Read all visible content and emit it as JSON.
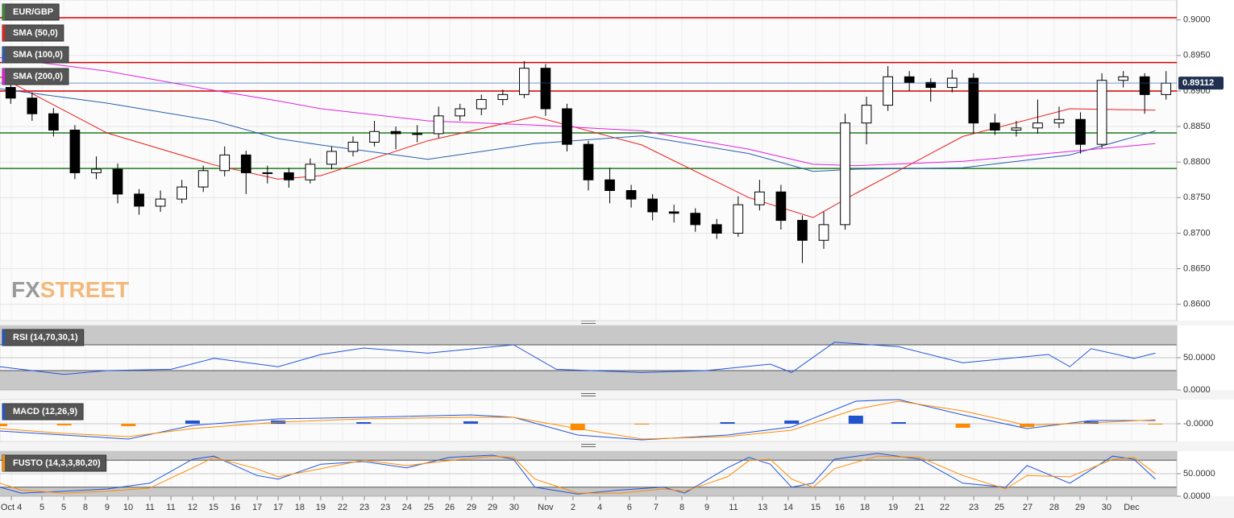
{
  "chart_data": [
    {
      "type": "candlestick",
      "title": "EUR/GBP",
      "title_color": "#3a8a3a",
      "open": [
        0.8905,
        0.889,
        0.8868,
        0.8845,
        0.8785,
        0.879,
        0.8755,
        0.8738,
        0.8748,
        0.8765,
        0.8788,
        0.881,
        0.8785,
        0.8785,
        0.8775,
        0.8797,
        0.8815,
        0.8828,
        0.8843,
        0.884,
        0.884,
        0.8865,
        0.8875,
        0.8888,
        0.8895,
        0.8932,
        0.8875,
        0.8825,
        0.8775,
        0.876,
        0.8748,
        0.873,
        0.8728,
        0.8712,
        0.87,
        0.874,
        0.8758,
        0.8718,
        0.869,
        0.8712,
        0.8855,
        0.888,
        0.892,
        0.8912,
        0.8905,
        0.8918,
        0.8855,
        0.8845,
        0.8848,
        0.8855,
        0.886,
        0.8825,
        0.8915,
        0.892,
        0.8895
      ],
      "high": [
        0.8915,
        0.8898,
        0.8876,
        0.8852,
        0.8808,
        0.8798,
        0.8762,
        0.876,
        0.8775,
        0.8795,
        0.8822,
        0.8816,
        0.8795,
        0.8792,
        0.8805,
        0.8822,
        0.8836,
        0.8858,
        0.885,
        0.8852,
        0.8878,
        0.8882,
        0.8895,
        0.8902,
        0.8942,
        0.8938,
        0.8882,
        0.883,
        0.8792,
        0.8768,
        0.8755,
        0.874,
        0.8735,
        0.872,
        0.8752,
        0.8775,
        0.8768,
        0.8725,
        0.873,
        0.8868,
        0.8892,
        0.8935,
        0.8928,
        0.8918,
        0.893,
        0.8925,
        0.8868,
        0.8858,
        0.8888,
        0.8878,
        0.887,
        0.8925,
        0.8928,
        0.8925,
        0.8928
      ],
      "low": [
        0.8882,
        0.8858,
        0.8836,
        0.8776,
        0.8776,
        0.8742,
        0.8726,
        0.873,
        0.8742,
        0.8758,
        0.878,
        0.8755,
        0.877,
        0.8764,
        0.877,
        0.879,
        0.8808,
        0.8822,
        0.8818,
        0.8828,
        0.8834,
        0.8858,
        0.8866,
        0.888,
        0.889,
        0.8865,
        0.8815,
        0.876,
        0.8742,
        0.8736,
        0.8718,
        0.8715,
        0.8702,
        0.8692,
        0.8695,
        0.8732,
        0.8705,
        0.8658,
        0.8678,
        0.8705,
        0.8825,
        0.8872,
        0.89,
        0.8885,
        0.8898,
        0.884,
        0.8838,
        0.8836,
        0.884,
        0.8848,
        0.8812,
        0.882,
        0.8905,
        0.8868,
        0.8888
      ],
      "close": [
        0.889,
        0.8868,
        0.8845,
        0.8785,
        0.879,
        0.8755,
        0.8738,
        0.8748,
        0.8765,
        0.8788,
        0.881,
        0.8785,
        0.8785,
        0.8775,
        0.8797,
        0.8815,
        0.8828,
        0.8843,
        0.884,
        0.884,
        0.8865,
        0.8875,
        0.8888,
        0.8895,
        0.8932,
        0.8875,
        0.8825,
        0.8775,
        0.876,
        0.8748,
        0.873,
        0.8728,
        0.8712,
        0.87,
        0.874,
        0.8758,
        0.8718,
        0.869,
        0.8712,
        0.8855,
        0.888,
        0.892,
        0.8912,
        0.8905,
        0.8918,
        0.8855,
        0.8845,
        0.8848,
        0.8855,
        0.886,
        0.8825,
        0.8915,
        0.892,
        0.8895,
        0.8911
      ],
      "up_color": "#ffffff",
      "down_color": "#000000",
      "series": [
        {
          "name": "SMA (50,0)",
          "color": "#e8201c",
          "x": [
            0,
            5,
            10,
            13,
            15,
            20,
            25,
            30,
            35,
            38,
            40,
            45,
            50,
            54
          ],
          "values": [
            0.892,
            0.8841,
            0.8796,
            0.8776,
            0.8781,
            0.883,
            0.8864,
            0.8824,
            0.875,
            0.8722,
            0.8756,
            0.8836,
            0.8875,
            0.8873
          ]
        },
        {
          "name": "SMA (100,0)",
          "color": "#2a5db0",
          "x": [
            0,
            5,
            10,
            13,
            15,
            20,
            25,
            30,
            35,
            38,
            40,
            45,
            50,
            54
          ],
          "values": [
            0.8903,
            0.8883,
            0.8858,
            0.8833,
            0.8824,
            0.8804,
            0.8826,
            0.8837,
            0.8812,
            0.8787,
            0.879,
            0.8792,
            0.881,
            0.8844
          ]
        },
        {
          "name": "SMA (200,0)",
          "color": "#e020e0",
          "x": [
            0,
            5,
            10,
            13,
            15,
            20,
            25,
            30,
            35,
            38,
            40,
            45,
            50,
            54
          ],
          "values": [
            0.8947,
            0.8928,
            0.8901,
            0.8886,
            0.8875,
            0.8858,
            0.8852,
            0.8844,
            0.8818,
            0.8797,
            0.8795,
            0.8801,
            0.8815,
            0.8826
          ]
        }
      ],
      "levels": [
        {
          "value": 0.9003,
          "color": "#d40000"
        },
        {
          "value": 0.894,
          "color": "#d40000"
        },
        {
          "value": 0.89,
          "color": "#d40000"
        },
        {
          "value": 0.8841,
          "color": "#1f7a1f"
        },
        {
          "value": 0.8791,
          "color": "#1f7a1f"
        }
      ],
      "last_price": 0.89112,
      "last_price_color": "#1f3050",
      "logo": [
        "FX",
        "STREET"
      ],
      "xlim": [
        0,
        55
      ],
      "xticks": [
        {
          "value": 0.53,
          "label": "Oct 4"
        },
        {
          "value": 1.96,
          "label": "5"
        },
        {
          "value": 2.98,
          "label": "5"
        },
        {
          "value": 3.99,
          "label": "8"
        },
        {
          "value": 5.01,
          "label": "9"
        },
        {
          "value": 5.99,
          "label": "10"
        },
        {
          "value": 7.01,
          "label": "11"
        },
        {
          "value": 7.99,
          "label": "11"
        },
        {
          "value": 9.0,
          "label": "12"
        },
        {
          "value": 9.98,
          "label": "15"
        },
        {
          "value": 11.0,
          "label": "16"
        },
        {
          "value": 12.02,
          "label": "17"
        },
        {
          "value": 13.0,
          "label": "17"
        },
        {
          "value": 14.01,
          "label": "18"
        },
        {
          "value": 14.99,
          "label": "19"
        },
        {
          "value": 16.01,
          "label": "22"
        },
        {
          "value": 17.03,
          "label": "23"
        },
        {
          "value": 18.01,
          "label": "23"
        },
        {
          "value": 19.02,
          "label": "24"
        },
        {
          "value": 20.04,
          "label": "25"
        },
        {
          "value": 21.02,
          "label": "26"
        },
        {
          "value": 22.04,
          "label": "29"
        },
        {
          "value": 23.02,
          "label": "29"
        },
        {
          "value": 24.03,
          "label": "30"
        },
        {
          "value": 25.5,
          "label": "Nov"
        },
        {
          "value": 26.78,
          "label": "2"
        },
        {
          "value": 28.03,
          "label": "4"
        },
        {
          "value": 29.42,
          "label": "6"
        },
        {
          "value": 30.66,
          "label": "7"
        },
        {
          "value": 31.87,
          "label": "8"
        },
        {
          "value": 33.04,
          "label": "9"
        },
        {
          "value": 34.28,
          "label": "11"
        },
        {
          "value": 35.64,
          "label": "13"
        },
        {
          "value": 36.84,
          "label": "14"
        },
        {
          "value": 38.12,
          "label": "15"
        },
        {
          "value": 39.25,
          "label": "16"
        },
        {
          "value": 40.42,
          "label": "18"
        },
        {
          "value": 41.74,
          "label": "19"
        },
        {
          "value": 42.98,
          "label": "21"
        },
        {
          "value": 44.15,
          "label": "22"
        },
        {
          "value": 45.51,
          "label": "23"
        },
        {
          "value": 46.71,
          "label": "25"
        },
        {
          "value": 48.03,
          "label": "27"
        },
        {
          "value": 49.27,
          "label": "28"
        },
        {
          "value": 50.48,
          "label": "29"
        },
        {
          "value": 51.72,
          "label": "30"
        },
        {
          "value": 52.89,
          "label": "Dec"
        }
      ],
      "ylim": [
        0.8577,
        0.9028
      ],
      "yticks": [
        {
          "value": 0.86,
          "label": "0.8600"
        },
        {
          "value": 0.865,
          "label": "0.8650"
        },
        {
          "value": 0.87,
          "label": "0.8700"
        },
        {
          "value": 0.875,
          "label": "0.8750"
        },
        {
          "value": 0.88,
          "label": "0.8800"
        },
        {
          "value": 0.885,
          "label": "0.8850"
        },
        {
          "value": 0.89,
          "label": "0.8900"
        },
        {
          "value": 0.895,
          "label": "0.8950"
        },
        {
          "value": 0.9,
          "label": "0.9000"
        }
      ],
      "grid": true
    },
    {
      "type": "line",
      "title": "RSI (14,70,30,1)",
      "title_color": "#2255cc",
      "bands": [
        70,
        30
      ],
      "ylim": [
        0,
        100
      ],
      "yticks": [
        {
          "value": 50,
          "label": "50.0000"
        },
        {
          "value": 0,
          "label": "0.0000"
        }
      ],
      "series": [
        {
          "color": "#2255dd",
          "x": [
            0,
            3,
            5,
            8,
            10,
            13,
            15,
            17,
            20,
            24,
            26,
            30,
            33,
            36,
            37,
            39,
            42,
            45,
            49,
            50,
            51,
            53,
            54
          ],
          "values": [
            36,
            24,
            30,
            32,
            49,
            36,
            55,
            65,
            57,
            70,
            32,
            27,
            30,
            40,
            27,
            74,
            67,
            42,
            55,
            36,
            64,
            49,
            57
          ]
        }
      ]
    },
    {
      "type": "line",
      "title": "MACD (12,26,9)",
      "title_color": "#2255cc",
      "ylim": [
        -0.0022,
        0.003
      ],
      "yticks": [
        {
          "value": 0,
          "label": "-0.0000"
        }
      ],
      "histogram": {
        "x": [
          0,
          3,
          6,
          9,
          13,
          17,
          22,
          24,
          27,
          30,
          34,
          37,
          40,
          42,
          45,
          48,
          51,
          54
        ],
        "values": [
          -0.0003,
          -0.0002,
          -0.0003,
          0.0004,
          0.0004,
          0.0002,
          0.0003,
          0,
          -0.0008,
          -0.0001,
          0.0002,
          0.0004,
          0.001,
          0.0002,
          -0.0005,
          -0.0004,
          0.0003,
          -0.0001
        ],
        "up_color": "#2255cc",
        "down_color": "#ff8c00"
      },
      "series": [
        {
          "color": "#2255dd",
          "x": [
            0,
            3,
            6,
            9,
            13,
            17,
            22,
            24,
            27,
            30,
            34,
            37,
            40,
            42,
            45,
            48,
            51,
            54
          ],
          "values": [
            -0.0009,
            -0.0014,
            -0.0019,
            -0.0002,
            0.0006,
            0.0008,
            0.0011,
            0.0008,
            -0.0014,
            -0.002,
            -0.0014,
            -0.0004,
            0.0028,
            0.003,
            0.0011,
            -0.0006,
            0.0004,
            0.0004
          ]
        },
        {
          "color": "#ff8c00",
          "x": [
            0,
            3,
            6,
            9,
            13,
            17,
            22,
            24,
            27,
            30,
            34,
            37,
            40,
            42,
            45,
            48,
            51,
            54
          ],
          "values": [
            -0.0006,
            -0.0012,
            -0.0016,
            -0.0006,
            0.0002,
            0.0006,
            0.0008,
            0.0008,
            -0.0006,
            -0.0019,
            -0.0016,
            -0.0008,
            0.0018,
            0.0028,
            0.0016,
            -0.0002,
            0.0001,
            0.0005
          ]
        }
      ]
    },
    {
      "type": "line",
      "title": "FUSTO (14,3,3,80,20)",
      "title_color": "#ff8c00",
      "bands": [
        80,
        20
      ],
      "ylim": [
        0,
        100
      ],
      "yticks": [
        {
          "value": 50,
          "label": "50.0000"
        },
        {
          "value": 0,
          "label": "0.0000"
        }
      ],
      "series": [
        {
          "color": "#2255dd",
          "x": [
            0,
            1,
            3,
            5,
            7,
            9,
            10,
            12,
            13,
            15,
            17,
            19,
            21,
            23,
            24,
            25,
            27,
            29,
            31,
            32,
            34,
            35,
            36,
            37,
            38,
            39,
            41,
            43,
            45,
            47,
            48,
            50,
            52,
            53,
            54
          ],
          "values": [
            20,
            7,
            11,
            16,
            29,
            82,
            89,
            46,
            38,
            71,
            77,
            63,
            86,
            91,
            82,
            20,
            5,
            14,
            20,
            7,
            63,
            86,
            71,
            20,
            29,
            82,
            95,
            82,
            29,
            20,
            68,
            29,
            89,
            82,
            38
          ]
        },
        {
          "color": "#ff8c00",
          "x": [
            0,
            1,
            3,
            5,
            7,
            9,
            10,
            12,
            13,
            15,
            17,
            19,
            21,
            23,
            24,
            25,
            27,
            29,
            31,
            32,
            34,
            35,
            36,
            37,
            38,
            39,
            41,
            43,
            45,
            47,
            48,
            50,
            52,
            53,
            54
          ],
          "values": [
            29,
            14,
            7,
            11,
            18,
            63,
            86,
            61,
            43,
            61,
            80,
            68,
            79,
            89,
            86,
            38,
            7,
            7,
            16,
            11,
            43,
            79,
            82,
            38,
            20,
            61,
            89,
            86,
            46,
            16,
            46,
            43,
            82,
            86,
            50
          ]
        }
      ]
    }
  ]
}
